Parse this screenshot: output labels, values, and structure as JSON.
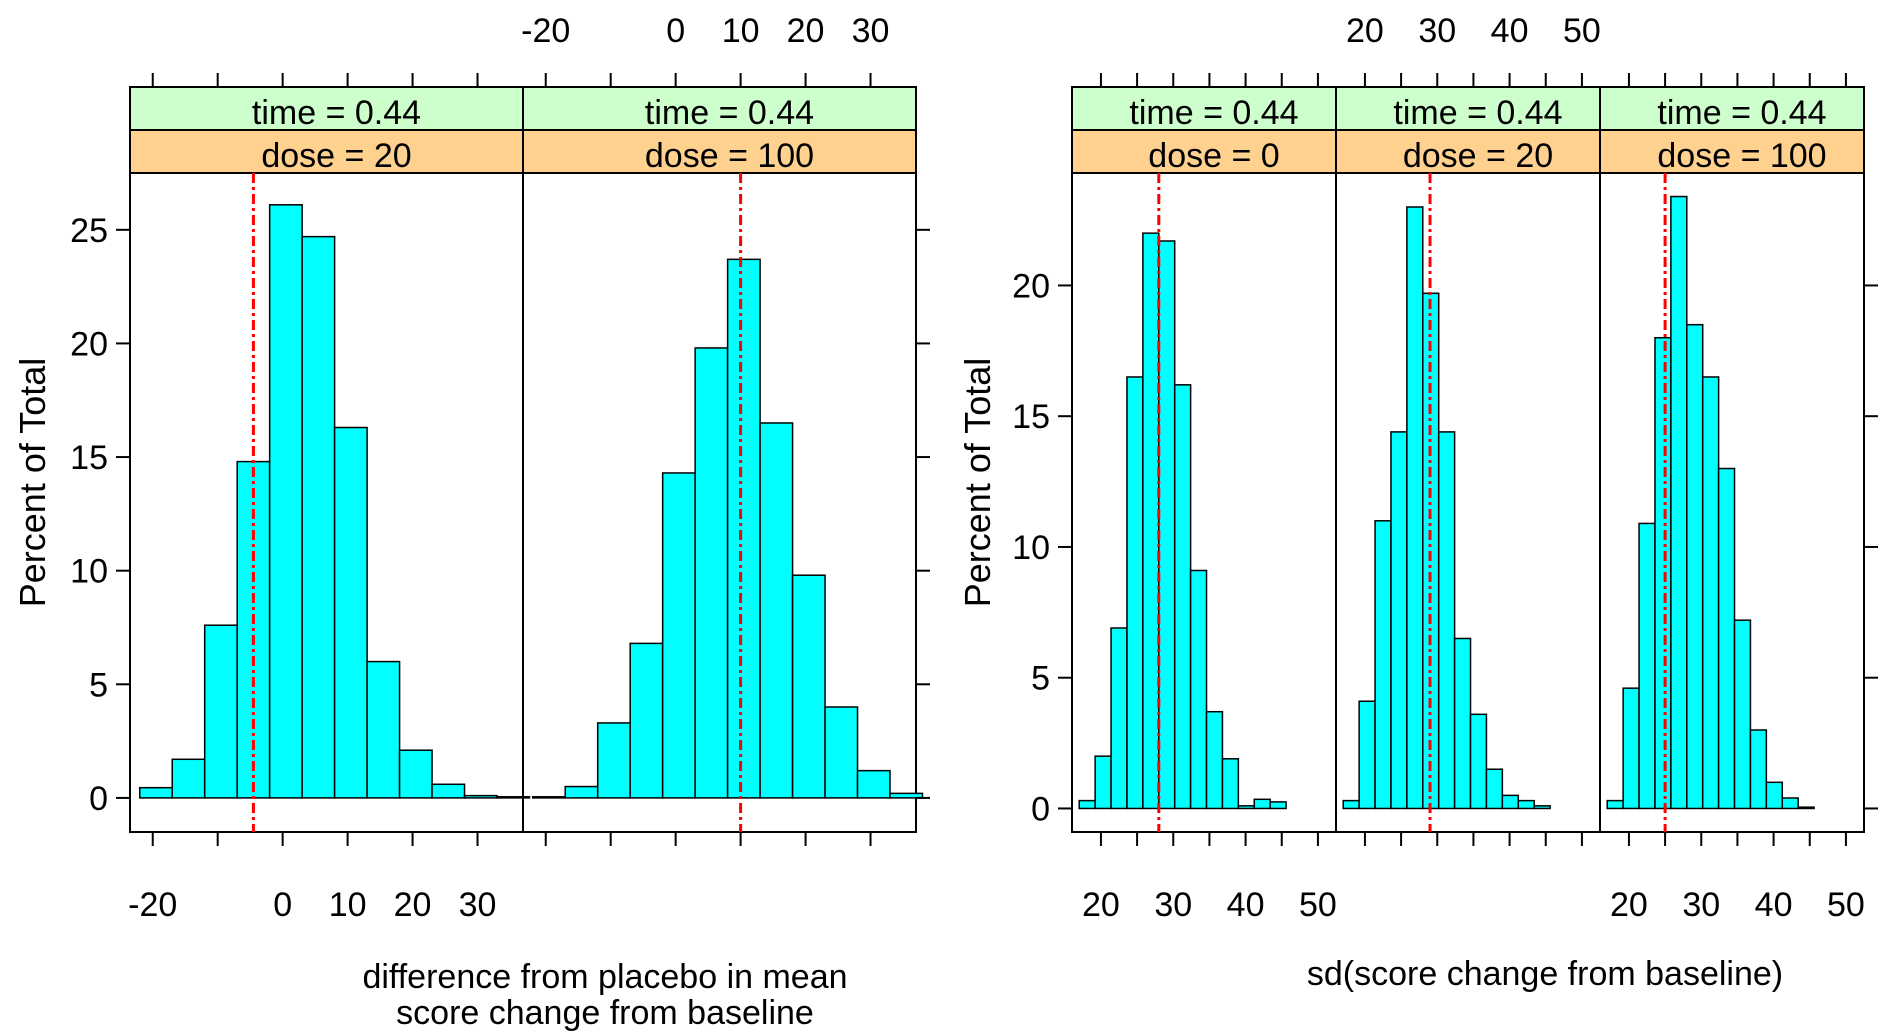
{
  "chart_data": [
    {
      "type": "bar",
      "ylabel": "Percent of Total",
      "xlabel_lines": [
        "difference from placebo in mean",
        "score change from baseline"
      ],
      "ylim": [
        -1.5,
        27.5
      ],
      "yticks": [
        0,
        5,
        10,
        15,
        20,
        25
      ],
      "xlim": [
        -23.5,
        37
      ],
      "xticks": [
        -20,
        -10,
        0,
        10,
        20,
        30
      ],
      "xtick_labels": [
        -20,
        0,
        10,
        20,
        30
      ],
      "strip_colors": {
        "time": "#ccffcc",
        "dose": "#ffd18f"
      },
      "bar_color": "#00ffff",
      "reference_line_color": "#ff0000",
      "panels": [
        {
          "time_label": "time = 0.44",
          "dose_label": "dose = 20",
          "bin_start": -22,
          "bin_width": 5,
          "values": [
            0.45,
            1.7,
            7.6,
            14.8,
            26.1,
            24.7,
            16.3,
            6.0,
            2.1,
            0.6,
            0.1,
            0.05
          ],
          "reference_x": -4.5
        },
        {
          "time_label": "time = 0.44",
          "dose_label": "dose = 100",
          "bin_start": -22,
          "bin_width": 5,
          "values": [
            0.05,
            0.5,
            3.3,
            6.8,
            14.3,
            19.8,
            23.7,
            16.5,
            9.8,
            4.0,
            1.2,
            0.2
          ],
          "reference_x": 10
        }
      ]
    },
    {
      "type": "bar",
      "ylabel": "Percent of Total",
      "xlabel": "sd(score change from baseline)",
      "ylim": [
        -0.9,
        24.3
      ],
      "yticks": [
        0,
        5,
        10,
        15,
        20
      ],
      "xlim": [
        16,
        52.5
      ],
      "xticks": [
        20,
        25,
        30,
        35,
        40,
        45,
        50
      ],
      "xtick_labels": [
        20,
        30,
        40,
        50
      ],
      "strip_colors": {
        "time": "#ccffcc",
        "dose": "#ffd18f"
      },
      "bar_color": "#00ffff",
      "reference_line_color": "#ff0000",
      "panels": [
        {
          "time_label": "time = 0.44",
          "dose_label": "dose = 0",
          "bin_start": 17,
          "bin_width": 2.2,
          "values": [
            0.3,
            2.0,
            6.9,
            16.5,
            22.0,
            21.7,
            16.2,
            9.1,
            3.7,
            1.9,
            0.1,
            0.35,
            0.25
          ],
          "reference_x": 28
        },
        {
          "time_label": "time = 0.44",
          "dose_label": "dose = 20",
          "bin_start": 17,
          "bin_width": 2.2,
          "values": [
            0.3,
            4.1,
            11.0,
            14.4,
            23.0,
            19.7,
            14.4,
            6.5,
            3.6,
            1.5,
            0.5,
            0.3,
            0.1
          ],
          "reference_x": 29
        },
        {
          "time_label": "time = 0.44",
          "dose_label": "dose = 100",
          "bin_start": 17,
          "bin_width": 2.2,
          "values": [
            0.3,
            4.6,
            10.9,
            18.0,
            23.4,
            18.5,
            16.5,
            13.0,
            7.2,
            3.0,
            1.0,
            0.4,
            0.05
          ],
          "reference_x": 25
        }
      ]
    }
  ]
}
